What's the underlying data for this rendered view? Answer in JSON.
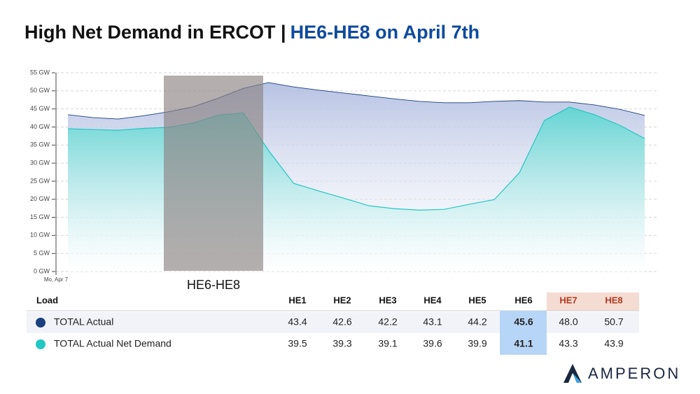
{
  "title": {
    "main": "High Net Demand in ERCOT |",
    "highlight": "HE6-HE8 on April 7th"
  },
  "chart_data": {
    "type": "area",
    "categories": [
      "Mo, Apr 7",
      null,
      null,
      null,
      null,
      null,
      null,
      null,
      null,
      null,
      null,
      null,
      null,
      null,
      null,
      null,
      null,
      null,
      null,
      null,
      null,
      null,
      null,
      null
    ],
    "ylim": [
      0,
      55
    ],
    "yticks": [
      {
        "value": 0,
        "label": "0 GW"
      },
      {
        "value": 5,
        "label": "5 GW"
      },
      {
        "value": 10,
        "label": "10 GW"
      },
      {
        "value": 15,
        "label": "15 GW"
      },
      {
        "value": 20,
        "label": "20 GW"
      },
      {
        "value": 25,
        "label": "25 GW"
      },
      {
        "value": 30,
        "label": "30 GW"
      },
      {
        "value": 35,
        "label": "35 GW"
      },
      {
        "value": 40,
        "label": "40 GW"
      },
      {
        "value": 45,
        "label": "45 GW"
      },
      {
        "value": 50,
        "label": "50 GW"
      },
      {
        "value": 55,
        "label": "55 GW"
      }
    ],
    "grid": true,
    "highlight_label": "HE6-HE8",
    "series": [
      {
        "name": "TOTAL Actual",
        "color": "#1b3f7f",
        "values": [
          43.4,
          42.6,
          42.2,
          43.1,
          44.2,
          45.6,
          48.0,
          50.7,
          52.3,
          51.1,
          50.2,
          49.4,
          48.6,
          47.8,
          47.1,
          46.7,
          46.7,
          47.1,
          47.3,
          46.9,
          46.9,
          46.1,
          44.9,
          43.2
        ]
      },
      {
        "name": "TOTAL Actual Net Demand",
        "color": "#22c7c3",
        "values": [
          39.5,
          39.3,
          39.1,
          39.6,
          39.9,
          41.1,
          43.3,
          43.9,
          33.5,
          24.4,
          22.3,
          20.3,
          18.2,
          17.4,
          17.0,
          17.2,
          18.6,
          19.9,
          27.3,
          41.8,
          45.5,
          43.4,
          40.5,
          36.8
        ]
      }
    ]
  },
  "table": {
    "header": [
      "Load",
      "HE1",
      "HE2",
      "HE3",
      "HE4",
      "HE5",
      "HE6",
      "HE7",
      "HE8"
    ],
    "rows": [
      [
        "43.4",
        "42.6",
        "42.2",
        "43.1",
        "44.2",
        "45.6",
        "48.0",
        "50.7"
      ],
      [
        "39.5",
        "39.3",
        "39.1",
        "39.6",
        "39.9",
        "41.1",
        "43.3",
        "43.9"
      ]
    ]
  },
  "logo": "AMPERON"
}
